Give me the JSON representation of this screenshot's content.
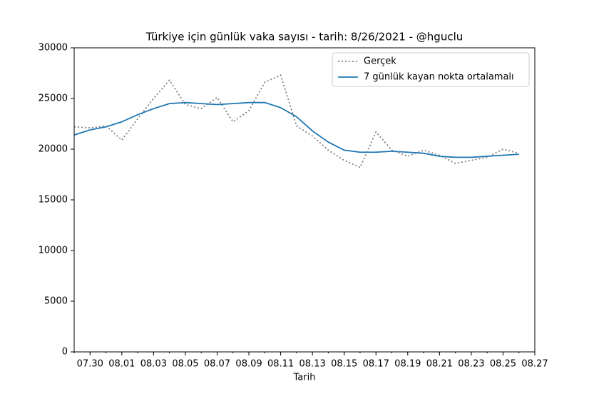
{
  "chart_data": {
    "type": "line",
    "title": "Türkiye için günlük vaka sayısı - tarih:  8/26/2021 - @hguclu",
    "x_label": "Tarih",
    "x": [
      "07.29",
      "07.30",
      "07.31",
      "08.01",
      "08.02",
      "08.03",
      "08.04",
      "08.05",
      "08.06",
      "08.07",
      "08.08",
      "08.09",
      "08.10",
      "08.11",
      "08.12",
      "08.13",
      "08.14",
      "08.15",
      "08.16",
      "08.17",
      "08.18",
      "08.19",
      "08.20",
      "08.21",
      "08.22",
      "08.23",
      "08.24",
      "08.25",
      "08.26"
    ],
    "series": [
      {
        "name": "Gerçek",
        "color": "#808080",
        "dash": "dotted",
        "values": [
          22200,
          22100,
          22300,
          20900,
          23000,
          25000,
          26800,
          24400,
          24000,
          25100,
          22700,
          23800,
          26600,
          27300,
          22300,
          21300,
          19900,
          18900,
          18200,
          21700,
          19900,
          19300,
          19900,
          19400,
          18600,
          18900,
          19200,
          20000,
          19600
        ]
      },
      {
        "name": "7 günlük kayan nokta ortalamalı",
        "color": "#1f77b4",
        "dash": "solid",
        "values": [
          21400,
          21900,
          22200,
          22700,
          23400,
          24000,
          24500,
          24600,
          24500,
          24400,
          24500,
          24600,
          24600,
          24100,
          23200,
          21800,
          20700,
          19900,
          19700,
          19700,
          19800,
          19700,
          19600,
          19300,
          19200,
          19200,
          19300,
          19400,
          19500
        ]
      }
    ],
    "xlim": [
      "07.29",
      "08.27"
    ],
    "xticks": [
      "07.30",
      "08.01",
      "08.03",
      "08.05",
      "08.07",
      "08.09",
      "08.11",
      "08.13",
      "08.15",
      "08.17",
      "08.19",
      "08.21",
      "08.23",
      "08.25",
      "08.27"
    ],
    "ylim": [
      0,
      30000
    ],
    "yticks": [
      0,
      5000,
      10000,
      15000,
      20000,
      25000,
      30000
    ],
    "legend": "upper right"
  }
}
